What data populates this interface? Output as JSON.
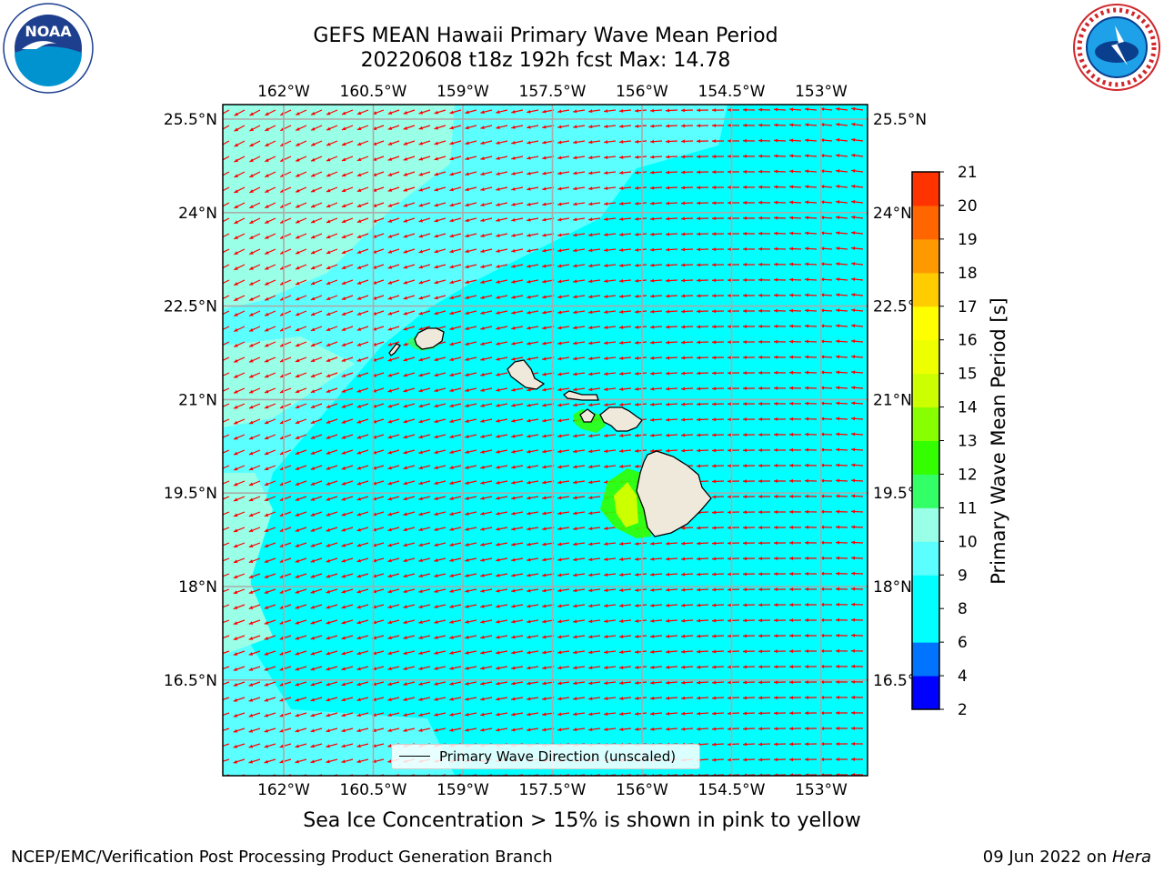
{
  "header": {
    "title_line1": "GEFS MEAN Hawaii Primary Wave Mean Period",
    "title_line2": "20220608 t18z 192h fcst   Max: 14.78"
  },
  "logos": {
    "left": {
      "name": "noaa-logo",
      "text": "NOAA",
      "ring_text": "NATIONAL OCEANIC AND ATMOSPHERIC ADMINISTRATION · U.S. DEPARTMENT OF COMMERCE"
    },
    "right": {
      "name": "nws-logo",
      "ring_text": "NATIONAL WEATHER SERVICE"
    }
  },
  "map": {
    "lon_ticks": [
      "162°W",
      "160.5°W",
      "159°W",
      "157.5°W",
      "156°W",
      "154.5°W",
      "153°W"
    ],
    "lat_ticks": [
      "25.5°N",
      "24°N",
      "22.5°N",
      "21°N",
      "19.5°N",
      "18°N",
      "16.5°N"
    ],
    "lon_range": [
      -163,
      -152.3
    ],
    "lat_range": [
      14.9,
      25.7
    ],
    "arrow_color": "#ff0000",
    "ocean_color": "#00ffff",
    "land_color": "#efe9dc",
    "grid_color": "#aaaaaa"
  },
  "legend": {
    "label": "Primary Wave Direction (unscaled)"
  },
  "colorbar": {
    "label": "Primary Wave Mean Period [s]",
    "ticks": [
      "2",
      "4",
      "6",
      "8",
      "9",
      "10",
      "11",
      "12",
      "13",
      "14",
      "15",
      "16",
      "17",
      "18",
      "19",
      "20",
      "21"
    ],
    "colors": [
      "#0000ff",
      "#0073ff",
      "#00ffff",
      "#00ffff",
      "#5cffff",
      "#99ffe6",
      "#33ff66",
      "#33ff00",
      "#88ff00",
      "#ccff00",
      "#eeff00",
      "#ffff00",
      "#ffcc00",
      "#ff9900",
      "#ff6600",
      "#ff3300",
      "#ff0000"
    ]
  },
  "subnote": "Sea Ice Concentration > 15% is shown in pink to yellow",
  "footer": {
    "left": "NCEP/EMC/Verification Post Processing Product Generation Branch",
    "right_prefix": "09 Jun 2022 on ",
    "right_italic": "Hera"
  }
}
